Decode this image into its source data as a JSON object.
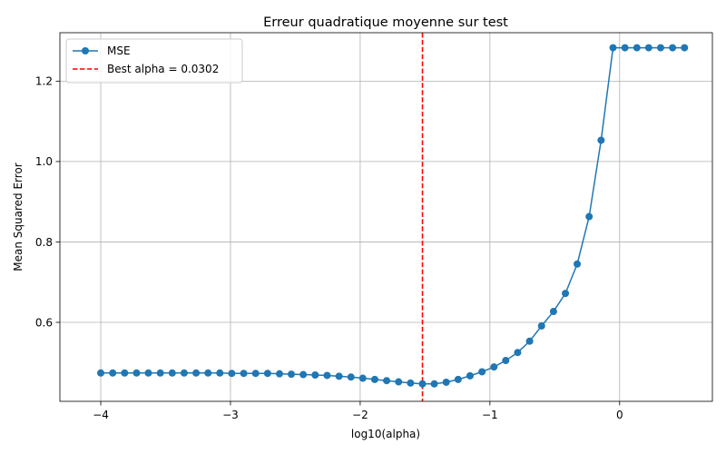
{
  "chart_data": {
    "type": "line",
    "title": "Erreur quadratique moyenne sur test",
    "xlabel": "log10(alpha)",
    "ylabel": "Mean Squared Error",
    "xlim": [
      -4.315,
      0.715
    ],
    "ylim": [
      0.4035,
      1.3205
    ],
    "grid": true,
    "legend_position": "top-left",
    "x_ticks": [
      -4,
      -3,
      -2,
      -1,
      0
    ],
    "x_tick_labels": [
      "−4",
      "−3",
      "−2",
      "−1",
      "0"
    ],
    "y_ticks": [
      0.6,
      0.8,
      1.0,
      1.2
    ],
    "y_tick_labels": [
      "0.6",
      "0.8",
      "1.0",
      "1.2"
    ],
    "series": [
      {
        "name": "MSE",
        "color": "#1f77b4",
        "marker": "circle",
        "x": [
          -4.0,
          -3.908,
          -3.816,
          -3.724,
          -3.633,
          -3.541,
          -3.449,
          -3.357,
          -3.265,
          -3.173,
          -3.082,
          -2.99,
          -2.898,
          -2.806,
          -2.714,
          -2.622,
          -2.531,
          -2.439,
          -2.347,
          -2.255,
          -2.163,
          -2.071,
          -1.98,
          -1.888,
          -1.796,
          -1.704,
          -1.612,
          -1.52,
          -1.429,
          -1.337,
          -1.245,
          -1.153,
          -1.061,
          -0.969,
          -0.878,
          -0.786,
          -0.694,
          -0.602,
          -0.51,
          -0.418,
          -0.327,
          -0.235,
          -0.143,
          -0.051,
          0.041,
          0.133,
          0.224,
          0.316,
          0.408,
          0.5
        ],
        "values": [
          0.474,
          0.474,
          0.474,
          0.474,
          0.474,
          0.474,
          0.474,
          0.474,
          0.474,
          0.474,
          0.474,
          0.473,
          0.473,
          0.473,
          0.473,
          0.472,
          0.471,
          0.47,
          0.469,
          0.468,
          0.466,
          0.464,
          0.461,
          0.458,
          0.455,
          0.452,
          0.449,
          0.447,
          0.447,
          0.451,
          0.458,
          0.467,
          0.477,
          0.489,
          0.505,
          0.525,
          0.553,
          0.591,
          0.627,
          0.672,
          0.745,
          0.863,
          1.053,
          1.283,
          1.283,
          1.283,
          1.283,
          1.283,
          1.283,
          1.283
        ]
      }
    ],
    "reference_line": {
      "name": "Best alpha = 0.0302",
      "color": "#ff0000",
      "style": "dashed",
      "x": -1.52
    }
  }
}
